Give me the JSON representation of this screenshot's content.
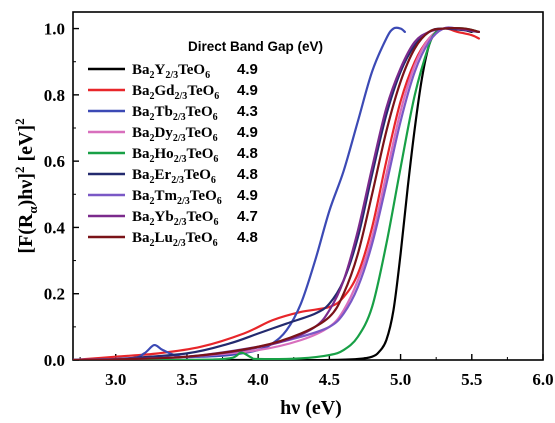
{
  "chart_data": {
    "type": "line",
    "title": "",
    "xlabel": "hν (eV)",
    "ylabel": "[F(Rα)hν]² [eV]²",
    "xlim": [
      2.7,
      6.0
    ],
    "ylim": [
      0.0,
      1.05
    ],
    "x_ticks": [
      3.0,
      3.5,
      4.0,
      4.5,
      5.0,
      5.5,
      6.0
    ],
    "y_ticks": [
      0.0,
      0.2,
      0.4,
      0.6,
      0.8,
      1.0
    ],
    "x_tick_labels": [
      "3.0",
      "3.5",
      "4.0",
      "4.5",
      "5.0",
      "5.5",
      "6.0"
    ],
    "y_tick_labels": [
      "0.0",
      "0.2",
      "0.4",
      "0.6",
      "0.8",
      "1.0"
    ],
    "grid": false,
    "legend_position": "top-left",
    "legend_title": "Direct Band Gap (eV)",
    "series": [
      {
        "name": "Ba2Y2/3TeO6",
        "name_base": "Ba",
        "name_sub1": "2",
        "name_mid": "Y",
        "name_sub2": "2/3",
        "name_end": "TeO",
        "name_sub3": "6",
        "band_gap": "4.9",
        "color": "#000000",
        "points": [
          [
            2.7,
            0.0
          ],
          [
            4.0,
            0.0
          ],
          [
            4.5,
            0.0
          ],
          [
            4.7,
            0.003
          ],
          [
            4.8,
            0.01
          ],
          [
            4.85,
            0.025
          ],
          [
            4.9,
            0.06
          ],
          [
            4.95,
            0.15
          ],
          [
            5.0,
            0.32
          ],
          [
            5.05,
            0.52
          ],
          [
            5.1,
            0.7
          ],
          [
            5.15,
            0.85
          ],
          [
            5.2,
            0.95
          ],
          [
            5.25,
            0.99
          ],
          [
            5.3,
            1.0
          ],
          [
            5.4,
            1.0
          ],
          [
            5.5,
            0.99
          ]
        ]
      },
      {
        "name": "Ba2Gd2/3TeO6",
        "name_base": "Ba",
        "name_sub1": "2",
        "name_mid": "Gd",
        "name_sub2": "2/3",
        "name_end": "TeO",
        "name_sub3": "6",
        "band_gap": "4.9",
        "color": "#e8262a",
        "points": [
          [
            2.7,
            0.0
          ],
          [
            3.0,
            0.01
          ],
          [
            3.3,
            0.02
          ],
          [
            3.6,
            0.04
          ],
          [
            3.9,
            0.08
          ],
          [
            4.1,
            0.12
          ],
          [
            4.3,
            0.145
          ],
          [
            4.5,
            0.16
          ],
          [
            4.6,
            0.19
          ],
          [
            4.7,
            0.26
          ],
          [
            4.8,
            0.4
          ],
          [
            4.9,
            0.6
          ],
          [
            5.0,
            0.78
          ],
          [
            5.1,
            0.9
          ],
          [
            5.2,
            0.97
          ],
          [
            5.3,
            1.0
          ],
          [
            5.4,
            0.99
          ],
          [
            5.5,
            0.98
          ],
          [
            5.55,
            0.97
          ]
        ]
      },
      {
        "name": "Ba2Tb2/3TeO6",
        "name_base": "Ba",
        "name_sub1": "2",
        "name_mid": "Tb",
        "name_sub2": "2/3",
        "name_end": "TeO",
        "name_sub3": "6",
        "band_gap": "4.3",
        "color": "#3c4ab5",
        "points": [
          [
            2.7,
            0.0
          ],
          [
            3.1,
            0.005
          ],
          [
            3.2,
            0.02
          ],
          [
            3.27,
            0.045
          ],
          [
            3.33,
            0.03
          ],
          [
            3.45,
            0.01
          ],
          [
            3.6,
            0.01
          ],
          [
            3.8,
            0.015
          ],
          [
            4.0,
            0.03
          ],
          [
            4.1,
            0.05
          ],
          [
            4.2,
            0.09
          ],
          [
            4.3,
            0.17
          ],
          [
            4.4,
            0.3
          ],
          [
            4.5,
            0.45
          ],
          [
            4.6,
            0.57
          ],
          [
            4.7,
            0.72
          ],
          [
            4.8,
            0.87
          ],
          [
            4.9,
            0.97
          ],
          [
            4.95,
            1.0
          ],
          [
            5.0,
            1.0
          ],
          [
            5.03,
            0.99
          ]
        ]
      },
      {
        "name": "Ba2Dy2/3TeO6",
        "name_base": "Ba",
        "name_sub1": "2",
        "name_mid": "Dy",
        "name_sub2": "2/3",
        "name_end": "TeO",
        "name_sub3": "6",
        "band_gap": "4.9",
        "color": "#d86fbd",
        "points": [
          [
            2.7,
            0.0
          ],
          [
            3.0,
            0.002
          ],
          [
            3.5,
            0.01
          ],
          [
            4.0,
            0.03
          ],
          [
            4.3,
            0.06
          ],
          [
            4.5,
            0.1
          ],
          [
            4.6,
            0.15
          ],
          [
            4.7,
            0.24
          ],
          [
            4.8,
            0.37
          ],
          [
            4.9,
            0.56
          ],
          [
            5.0,
            0.75
          ],
          [
            5.1,
            0.89
          ],
          [
            5.2,
            0.97
          ],
          [
            5.3,
            1.0
          ],
          [
            5.4,
            1.0
          ],
          [
            5.55,
            0.99
          ]
        ]
      },
      {
        "name": "Ba2Ho2/3TeO6",
        "name_base": "Ba",
        "name_sub1": "2",
        "name_mid": "Ho",
        "name_sub2": "2/3",
        "name_end": "TeO",
        "name_sub3": "6",
        "band_gap": "4.8",
        "color": "#18a046",
        "points": [
          [
            2.7,
            0.0
          ],
          [
            3.5,
            0.0
          ],
          [
            3.8,
            0.005
          ],
          [
            3.88,
            0.022
          ],
          [
            3.95,
            0.008
          ],
          [
            4.0,
            0.003
          ],
          [
            4.3,
            0.005
          ],
          [
            4.5,
            0.015
          ],
          [
            4.6,
            0.03
          ],
          [
            4.7,
            0.07
          ],
          [
            4.8,
            0.16
          ],
          [
            4.9,
            0.35
          ],
          [
            5.0,
            0.58
          ],
          [
            5.1,
            0.8
          ],
          [
            5.2,
            0.95
          ],
          [
            5.25,
            0.99
          ],
          [
            5.3,
            1.0
          ],
          [
            5.45,
            1.0
          ],
          [
            5.55,
            0.99
          ]
        ]
      },
      {
        "name": "Ba2Er2/3TeO6",
        "name_base": "Ba",
        "name_sub1": "2",
        "name_mid": "Er",
        "name_sub2": "2/3",
        "name_end": "TeO",
        "name_sub3": "6",
        "band_gap": "4.8",
        "color": "#232a6e",
        "points": [
          [
            2.7,
            0.0
          ],
          [
            3.0,
            0.003
          ],
          [
            3.5,
            0.02
          ],
          [
            3.8,
            0.05
          ],
          [
            4.0,
            0.08
          ],
          [
            4.2,
            0.11
          ],
          [
            4.4,
            0.14
          ],
          [
            4.5,
            0.17
          ],
          [
            4.6,
            0.24
          ],
          [
            4.7,
            0.37
          ],
          [
            4.8,
            0.56
          ],
          [
            4.9,
            0.74
          ],
          [
            5.0,
            0.87
          ],
          [
            5.1,
            0.95
          ],
          [
            5.2,
            0.99
          ],
          [
            5.3,
            1.0
          ],
          [
            5.55,
            0.99
          ]
        ]
      },
      {
        "name": "Ba2Tm2/3TeO6",
        "name_base": "Ba",
        "name_sub1": "2",
        "name_mid": "Tm",
        "name_sub2": "2/3",
        "name_end": "TeO",
        "name_sub3": "6",
        "band_gap": "4.9",
        "color": "#7a58c6",
        "points": [
          [
            2.7,
            0.0
          ],
          [
            3.0,
            0.003
          ],
          [
            3.5,
            0.01
          ],
          [
            4.0,
            0.04
          ],
          [
            4.3,
            0.07
          ],
          [
            4.5,
            0.1
          ],
          [
            4.6,
            0.14
          ],
          [
            4.7,
            0.22
          ],
          [
            4.8,
            0.35
          ],
          [
            4.9,
            0.53
          ],
          [
            5.0,
            0.72
          ],
          [
            5.1,
            0.87
          ],
          [
            5.2,
            0.96
          ],
          [
            5.3,
            1.0
          ],
          [
            5.4,
            1.0
          ],
          [
            5.55,
            0.99
          ]
        ]
      },
      {
        "name": "Ba2Yb2/3TeO6",
        "name_base": "Ba",
        "name_sub1": "2",
        "name_mid": "Yb",
        "name_sub2": "2/3",
        "name_end": "TeO",
        "name_sub3": "6",
        "band_gap": "4.7",
        "color": "#7b2a8c",
        "points": [
          [
            2.7,
            0.0
          ],
          [
            3.0,
            0.002
          ],
          [
            3.5,
            0.01
          ],
          [
            3.9,
            0.03
          ],
          [
            4.2,
            0.06
          ],
          [
            4.4,
            0.1
          ],
          [
            4.5,
            0.15
          ],
          [
            4.6,
            0.24
          ],
          [
            4.7,
            0.39
          ],
          [
            4.8,
            0.58
          ],
          [
            4.9,
            0.76
          ],
          [
            5.0,
            0.88
          ],
          [
            5.1,
            0.96
          ],
          [
            5.2,
            0.99
          ],
          [
            5.3,
            1.0
          ],
          [
            5.4,
            1.0
          ],
          [
            5.55,
            0.99
          ]
        ]
      },
      {
        "name": "Ba2Lu2/3TeO6",
        "name_base": "Ba",
        "name_sub1": "2",
        "name_mid": "Lu",
        "name_sub2": "2/3",
        "name_end": "TeO",
        "name_sub3": "6",
        "band_gap": "4.8",
        "color": "#7a1318",
        "points": [
          [
            2.7,
            0.0
          ],
          [
            3.0,
            0.002
          ],
          [
            3.5,
            0.01
          ],
          [
            4.0,
            0.04
          ],
          [
            4.3,
            0.08
          ],
          [
            4.5,
            0.13
          ],
          [
            4.6,
            0.2
          ],
          [
            4.7,
            0.32
          ],
          [
            4.8,
            0.5
          ],
          [
            4.9,
            0.69
          ],
          [
            5.0,
            0.84
          ],
          [
            5.1,
            0.94
          ],
          [
            5.2,
            0.99
          ],
          [
            5.3,
            1.0
          ],
          [
            5.45,
            1.0
          ],
          [
            5.55,
            0.99
          ]
        ]
      }
    ]
  }
}
